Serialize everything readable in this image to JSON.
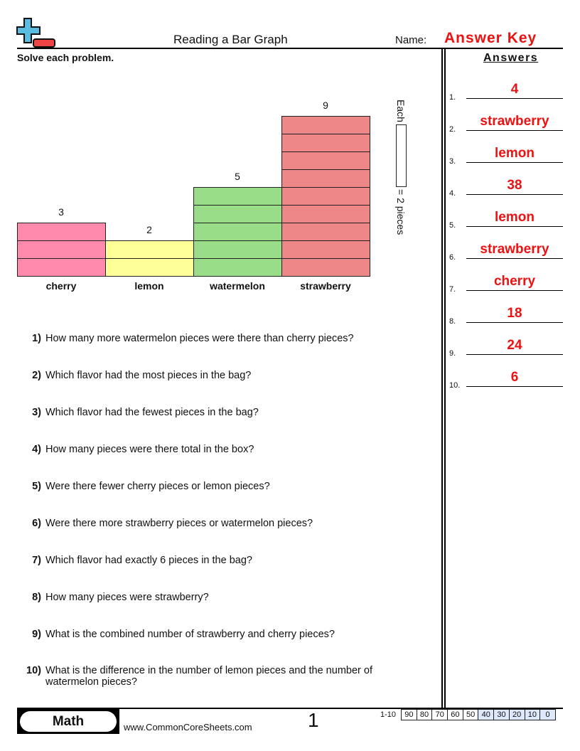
{
  "header": {
    "title": "Reading a Bar Graph",
    "name_label": "Name:",
    "name_value": "Answer Key",
    "instructions": "Solve each problem.",
    "answers_heading": "Answers"
  },
  "chart_data": {
    "type": "bar",
    "categories": [
      "cherry",
      "lemon",
      "watermelon",
      "strawberry"
    ],
    "values": [
      3,
      2,
      5,
      9
    ],
    "colors": [
      "#ff8aab",
      "#ffff99",
      "#99dd88",
      "#ee8888"
    ],
    "legend": {
      "prefix": "Each",
      "suffix": "= 2 pieces"
    }
  },
  "questions": [
    {
      "num": "1)",
      "text": "How many more watermelon pieces were there than cherry pieces?"
    },
    {
      "num": "2)",
      "text": "Which flavor had the most pieces in the bag?"
    },
    {
      "num": "3)",
      "text": "Which flavor had the fewest pieces in the bag?"
    },
    {
      "num": "4)",
      "text": "How many pieces were there total in the box?"
    },
    {
      "num": "5)",
      "text": "Were there fewer cherry pieces or lemon pieces?"
    },
    {
      "num": "6)",
      "text": "Were there more strawberry pieces or watermelon pieces?"
    },
    {
      "num": "7)",
      "text": "Which flavor had exactly 6 pieces in the bag?"
    },
    {
      "num": "8)",
      "text": "How many pieces were strawberry?"
    },
    {
      "num": "9)",
      "text": "What is the combined number of strawberry and cherry pieces?"
    },
    {
      "num": "10)",
      "text": "What is the difference in the number of lemon pieces and the number of watermelon pieces?"
    }
  ],
  "answers": [
    {
      "num": "1.",
      "text": "4"
    },
    {
      "num": "2.",
      "text": "strawberry"
    },
    {
      "num": "3.",
      "text": "lemon"
    },
    {
      "num": "4.",
      "text": "38"
    },
    {
      "num": "5.",
      "text": "lemon"
    },
    {
      "num": "6.",
      "text": "strawberry"
    },
    {
      "num": "7.",
      "text": "cherry"
    },
    {
      "num": "8.",
      "text": "18"
    },
    {
      "num": "9.",
      "text": "24"
    },
    {
      "num": "10.",
      "text": "6"
    }
  ],
  "footer": {
    "subject": "Math",
    "url": "www.CommonCoreSheets.com",
    "page": "1",
    "score_label": "1-10",
    "scores": [
      "90",
      "80",
      "70",
      "60",
      "50",
      "40",
      "30",
      "20",
      "10",
      "0"
    ]
  },
  "colors": {
    "accent_red": "#ee1111",
    "score_highlight": "#dde8fa"
  }
}
